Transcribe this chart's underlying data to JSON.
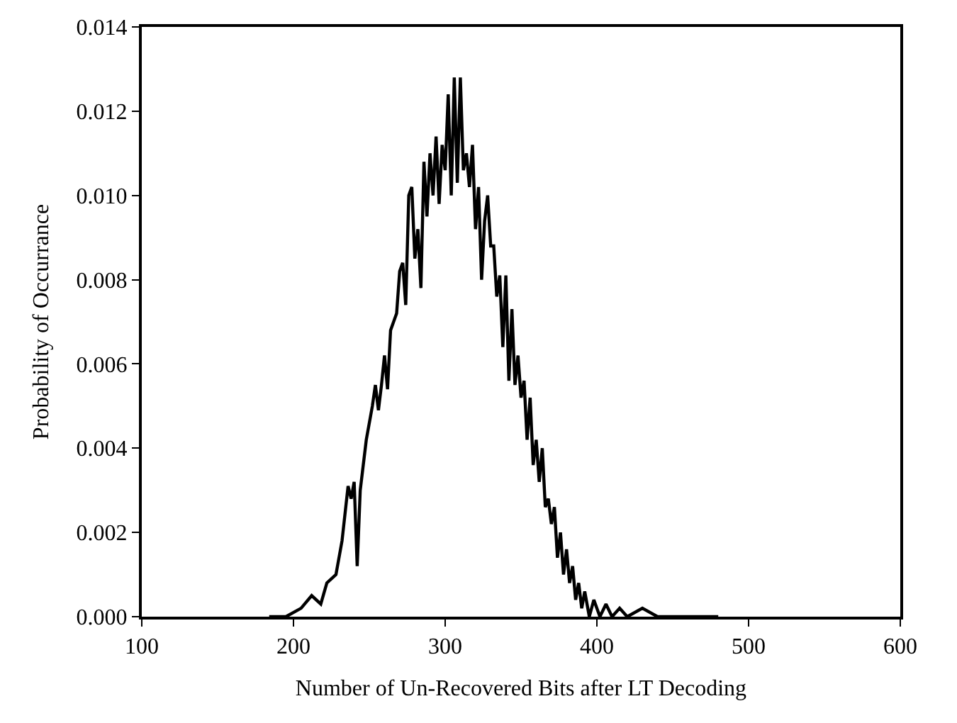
{
  "chart_data": {
    "type": "line",
    "xlabel": "Number of Un-Recovered Bits after LT Decoding",
    "ylabel": "Probability of Occurrance",
    "x": [
      184,
      195,
      205,
      212,
      218,
      222,
      228,
      232,
      236,
      238,
      240,
      242,
      244,
      248,
      252,
      254,
      256,
      258,
      260,
      262,
      264,
      266,
      268,
      270,
      272,
      274,
      276,
      278,
      280,
      282,
      284,
      286,
      288,
      290,
      292,
      294,
      296,
      298,
      300,
      302,
      304,
      306,
      308,
      310,
      312,
      314,
      316,
      318,
      320,
      322,
      324,
      326,
      328,
      330,
      332,
      334,
      336,
      338,
      340,
      342,
      344,
      346,
      348,
      350,
      352,
      354,
      356,
      358,
      360,
      362,
      364,
      366,
      368,
      370,
      372,
      374,
      376,
      378,
      380,
      382,
      384,
      386,
      388,
      390,
      392,
      395,
      398,
      402,
      406,
      410,
      415,
      420,
      430,
      440,
      480
    ],
    "series": [
      {
        "color": "#000000",
        "values": [
          0,
          0,
          0.0002,
          0.0005,
          0.0003,
          0.0008,
          0.001,
          0.0018,
          0.0031,
          0.0028,
          0.0032,
          0.0012,
          0.003,
          0.0042,
          0.005,
          0.0055,
          0.0049,
          0.0055,
          0.0062,
          0.0054,
          0.0068,
          0.007,
          0.0072,
          0.0082,
          0.0084,
          0.0074,
          0.01,
          0.0102,
          0.0085,
          0.0092,
          0.0078,
          0.0108,
          0.0095,
          0.011,
          0.01,
          0.0114,
          0.0098,
          0.0112,
          0.0106,
          0.0124,
          0.01,
          0.0128,
          0.0103,
          0.0128,
          0.0106,
          0.011,
          0.0102,
          0.0112,
          0.0092,
          0.0102,
          0.008,
          0.0094,
          0.01,
          0.0088,
          0.0088,
          0.0076,
          0.0081,
          0.0064,
          0.0081,
          0.0056,
          0.0073,
          0.0055,
          0.0062,
          0.0052,
          0.0056,
          0.0042,
          0.0052,
          0.0036,
          0.0042,
          0.0032,
          0.004,
          0.0026,
          0.0028,
          0.0022,
          0.0026,
          0.0014,
          0.002,
          0.001,
          0.0016,
          0.0008,
          0.0012,
          0.0004,
          0.0008,
          0.0002,
          0.0006,
          0,
          0.0004,
          0,
          0.0003,
          0,
          0.0002,
          0,
          0.0002,
          0,
          0
        ]
      }
    ],
    "xlim": [
      100,
      600
    ],
    "xticks": [
      100,
      200,
      300,
      400,
      500,
      600
    ],
    "ylim": [
      0,
      0.014
    ],
    "yticks": [
      {
        "value": 0,
        "label": "0.000"
      },
      {
        "value": 0.002,
        "label": "0.002"
      },
      {
        "value": 0.004,
        "label": "0.004"
      },
      {
        "value": 0.006,
        "label": "0.006"
      },
      {
        "value": 0.008,
        "label": "0.008"
      },
      {
        "value": 0.01,
        "label": "0.010"
      },
      {
        "value": 0.012,
        "label": "0.012"
      },
      {
        "value": 0.014,
        "label": "0.014"
      }
    ],
    "marker": "none",
    "line_style": "solid"
  }
}
